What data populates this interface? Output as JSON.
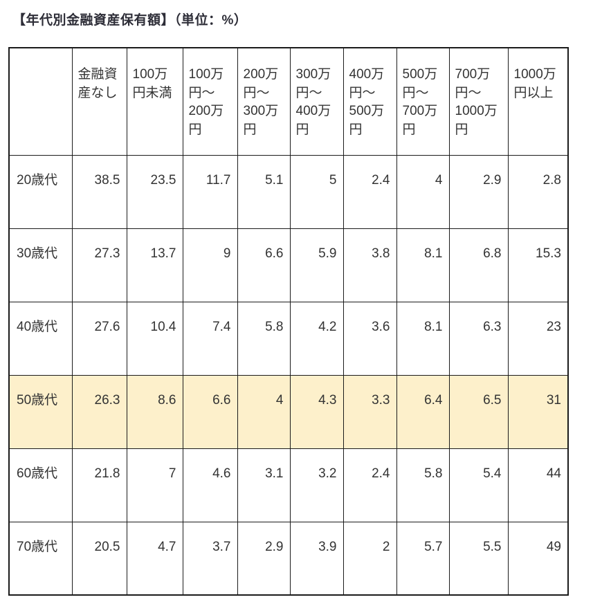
{
  "title": "【年代別金融資産保有額】（単位：%）",
  "colors": {
    "highlight_row_bg": "#FDF0CB",
    "table_border": "#1a1a1a",
    "text": "#333333",
    "page_bg": "#ffffff"
  },
  "chart_data": {
    "type": "table",
    "title": "年代別金融資産保有額",
    "unit_label": "単位：%",
    "corner_label": "",
    "columns": [
      "金融資産なし",
      "100万円未満",
      "100万円〜200万円",
      "200万円〜300万円",
      "300万円〜400万円",
      "400万円〜500万円",
      "500万円〜700万円",
      "700万円〜1000万円",
      "1000万円以上"
    ],
    "rows": [
      {
        "label": "20歳代",
        "highlighted": false,
        "values": [
          38.5,
          23.5,
          11.7,
          5.1,
          5,
          2.4,
          4,
          2.9,
          2.8
        ]
      },
      {
        "label": "30歳代",
        "highlighted": false,
        "values": [
          27.3,
          13.7,
          9,
          6.6,
          5.9,
          3.8,
          8.1,
          6.8,
          15.3
        ]
      },
      {
        "label": "40歳代",
        "highlighted": false,
        "values": [
          27.6,
          10.4,
          7.4,
          5.8,
          4.2,
          3.6,
          8.1,
          6.3,
          23
        ]
      },
      {
        "label": "50歳代",
        "highlighted": true,
        "values": [
          26.3,
          8.6,
          6.6,
          4,
          4.3,
          3.3,
          6.4,
          6.5,
          31
        ]
      },
      {
        "label": "60歳代",
        "highlighted": false,
        "values": [
          21.8,
          7,
          4.6,
          3.1,
          3.2,
          2.4,
          5.8,
          5.4,
          44
        ]
      },
      {
        "label": "70歳代",
        "highlighted": false,
        "values": [
          20.5,
          4.7,
          3.7,
          2.9,
          3.9,
          2,
          5.7,
          5.5,
          49
        ]
      }
    ]
  }
}
